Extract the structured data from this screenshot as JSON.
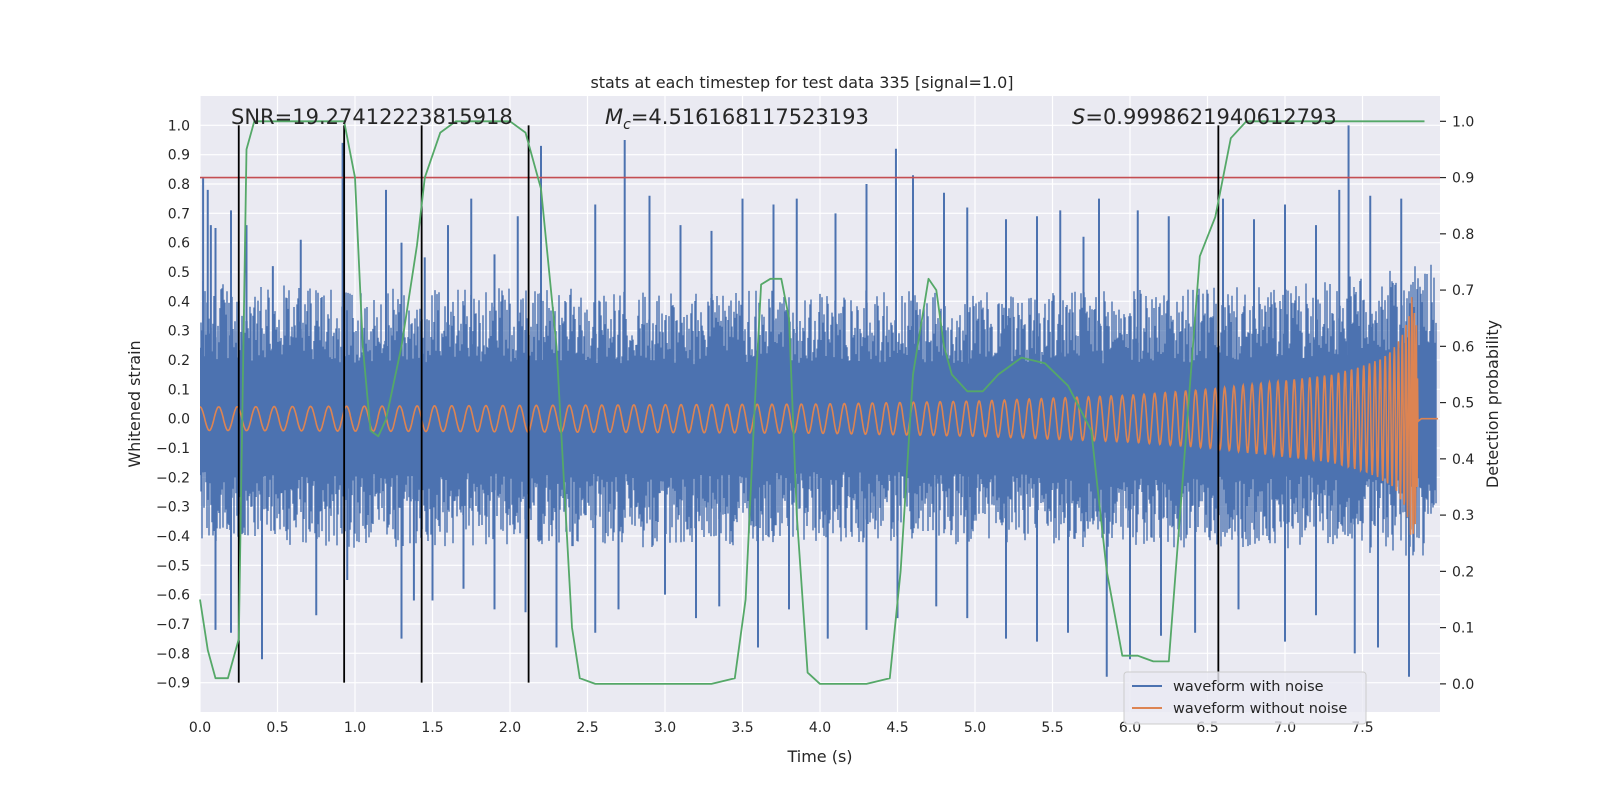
{
  "chart_data": {
    "type": "line",
    "title": "stats at each timestep for test data 335 [signal=1.0]",
    "xlabel": "Time (s)",
    "ylabel": "Whitened strain",
    "ylabel_right": "Detection probability",
    "xlim": [
      0.0,
      8.0
    ],
    "ylim": [
      -1.0,
      1.1
    ],
    "ylim_right": [
      -0.05,
      1.045
    ],
    "x_ticks": [
      "0.0",
      "0.5",
      "1.0",
      "1.5",
      "2.0",
      "2.5",
      "3.0",
      "3.5",
      "4.0",
      "4.5",
      "5.0",
      "5.5",
      "6.0",
      "6.5",
      "7.0",
      "7.5"
    ],
    "x_tick_values": [
      0.0,
      0.5,
      1.0,
      1.5,
      2.0,
      2.5,
      3.0,
      3.5,
      4.0,
      4.5,
      5.0,
      5.5,
      6.0,
      6.5,
      7.0,
      7.5
    ],
    "y_ticks": [
      "−0.9",
      "−0.8",
      "−0.7",
      "−0.6",
      "−0.5",
      "−0.4",
      "−0.3",
      "−0.2",
      "−0.1",
      "0.0",
      "0.1",
      "0.2",
      "0.3",
      "0.4",
      "0.5",
      "0.6",
      "0.7",
      "0.8",
      "0.9",
      "1.0"
    ],
    "y_tick_values": [
      -0.9,
      -0.8,
      -0.7,
      -0.6,
      -0.5,
      -0.4,
      -0.3,
      -0.2,
      -0.1,
      0.0,
      0.1,
      0.2,
      0.3,
      0.4,
      0.5,
      0.6,
      0.7,
      0.8,
      0.9,
      1.0
    ],
    "y2_ticks": [
      "0.0",
      "0.1",
      "0.2",
      "0.3",
      "0.4",
      "0.5",
      "0.6",
      "0.7",
      "0.8",
      "0.9",
      "1.0"
    ],
    "y2_tick_values": [
      0.0,
      0.1,
      0.2,
      0.3,
      0.4,
      0.5,
      0.6,
      0.7,
      0.8,
      0.9,
      1.0
    ],
    "annotations": {
      "snr": "SNR=19.27412223815918",
      "mc_symbol": "M",
      "mc_sub": "c",
      "mc_value": "=4.516168117523193",
      "s_symbol": "S",
      "s_value": "=0.9998621940612793"
    },
    "threshold": {
      "value": 0.9,
      "color": "#c44e52",
      "axis": "right"
    },
    "vertical_markers": [
      0.25,
      0.93,
      1.43,
      2.12,
      6.57
    ],
    "noise_series": {
      "name": "waveform with noise",
      "color": "#4c72b0",
      "envelope_x": [
        0.0,
        1.0,
        2.0,
        3.0,
        4.0,
        5.0,
        6.0,
        7.0,
        7.9,
        8.0
      ],
      "envelope_upper": [
        0.45,
        0.42,
        0.43,
        0.41,
        0.42,
        0.41,
        0.42,
        0.43,
        0.5,
        0.5
      ],
      "envelope_lower": [
        -0.4,
        -0.42,
        -0.41,
        -0.42,
        -0.4,
        -0.41,
        -0.42,
        -0.42,
        -0.45,
        -0.45
      ],
      "spikes": [
        [
          0.02,
          0.82
        ],
        [
          0.05,
          0.78
        ],
        [
          0.07,
          0.66
        ],
        [
          0.1,
          0.65
        ],
        [
          0.2,
          0.71
        ],
        [
          0.3,
          0.66
        ],
        [
          0.47,
          0.52
        ],
        [
          0.65,
          0.61
        ],
        [
          0.92,
          0.94
        ],
        [
          1.2,
          0.78
        ],
        [
          1.3,
          0.6
        ],
        [
          1.45,
          0.55
        ],
        [
          1.6,
          0.66
        ],
        [
          1.75,
          0.75
        ],
        [
          1.9,
          0.56
        ],
        [
          2.05,
          0.69
        ],
        [
          2.2,
          0.93
        ],
        [
          2.55,
          0.73
        ],
        [
          2.74,
          0.95
        ],
        [
          2.9,
          0.76
        ],
        [
          3.1,
          0.66
        ],
        [
          3.3,
          0.64
        ],
        [
          3.5,
          0.75
        ],
        [
          3.7,
          0.73
        ],
        [
          3.85,
          0.75
        ],
        [
          4.1,
          0.7
        ],
        [
          4.3,
          0.8
        ],
        [
          4.49,
          0.92
        ],
        [
          4.6,
          0.83
        ],
        [
          4.8,
          0.77
        ],
        [
          4.95,
          0.72
        ],
        [
          5.2,
          0.68
        ],
        [
          5.4,
          0.69
        ],
        [
          5.55,
          0.71
        ],
        [
          5.7,
          0.62
        ],
        [
          5.8,
          0.75
        ],
        [
          6.05,
          0.71
        ],
        [
          6.25,
          0.69
        ],
        [
          6.6,
          0.75
        ],
        [
          6.8,
          0.68
        ],
        [
          7.0,
          0.73
        ],
        [
          7.2,
          0.66
        ],
        [
          7.35,
          0.78
        ],
        [
          7.41,
          1.0
        ],
        [
          7.55,
          0.76
        ],
        [
          7.75,
          0.75
        ],
        [
          0.1,
          -0.72
        ],
        [
          0.2,
          -0.73
        ],
        [
          0.4,
          -0.82
        ],
        [
          0.75,
          -0.67
        ],
        [
          0.95,
          -0.55
        ],
        [
          1.3,
          -0.75
        ],
        [
          1.38,
          -0.62
        ],
        [
          1.5,
          -0.62
        ],
        [
          1.7,
          -0.58
        ],
        [
          1.9,
          -0.65
        ],
        [
          2.1,
          -0.66
        ],
        [
          2.3,
          -0.78
        ],
        [
          2.55,
          -0.73
        ],
        [
          2.7,
          -0.65
        ],
        [
          3.0,
          -0.6
        ],
        [
          3.2,
          -0.68
        ],
        [
          3.35,
          -0.64
        ],
        [
          3.6,
          -0.78
        ],
        [
          3.8,
          -0.65
        ],
        [
          4.05,
          -0.75
        ],
        [
          4.3,
          -0.72
        ],
        [
          4.5,
          -0.68
        ],
        [
          4.75,
          -0.64
        ],
        [
          4.95,
          -0.68
        ],
        [
          5.2,
          -0.75
        ],
        [
          5.4,
          -0.76
        ],
        [
          5.6,
          -0.73
        ],
        [
          5.85,
          -0.88
        ],
        [
          6.0,
          -0.82
        ],
        [
          6.2,
          -0.74
        ],
        [
          6.42,
          -0.73
        ],
        [
          6.7,
          -0.65
        ],
        [
          7.0,
          -0.76
        ],
        [
          7.2,
          -0.67
        ],
        [
          7.45,
          -0.8
        ],
        [
          7.6,
          -0.78
        ],
        [
          7.8,
          -0.88
        ]
      ]
    },
    "clean_series": {
      "name": "waveform without noise",
      "color": "#dd8452",
      "amplitude_x": [
        0.0,
        2.0,
        4.0,
        5.0,
        6.0,
        6.5,
        7.0,
        7.3,
        7.5,
        7.6,
        7.7,
        7.75,
        7.8,
        7.82,
        7.85,
        7.86,
        7.88,
        7.95,
        8.0
      ],
      "amplitude_y": [
        0.04,
        0.045,
        0.05,
        0.06,
        0.08,
        0.1,
        0.13,
        0.15,
        0.18,
        0.2,
        0.24,
        0.28,
        0.35,
        0.45,
        0.35,
        0.02,
        0.0,
        0.0,
        0.0
      ]
    },
    "probability_series": {
      "name": "detection probability",
      "color": "#55a868",
      "x": [
        0.0,
        0.05,
        0.1,
        0.18,
        0.25,
        0.3,
        0.35,
        0.45,
        0.55,
        0.65,
        0.85,
        0.93,
        1.0,
        1.05,
        1.1,
        1.15,
        1.2,
        1.3,
        1.4,
        1.45,
        1.55,
        1.65,
        1.8,
        2.0,
        2.1,
        2.2,
        2.3,
        2.4,
        2.45,
        2.55,
        2.7,
        3.0,
        3.3,
        3.45,
        3.52,
        3.58,
        3.62,
        3.68,
        3.75,
        3.8,
        3.85,
        3.92,
        4.0,
        4.1,
        4.3,
        4.45,
        4.52,
        4.6,
        4.7,
        4.75,
        4.8,
        4.85,
        4.95,
        5.05,
        5.15,
        5.3,
        5.45,
        5.6,
        5.75,
        5.85,
        5.95,
        6.05,
        6.15,
        6.25,
        6.35,
        6.45,
        6.55,
        6.65,
        6.75,
        6.85,
        7.0,
        7.5,
        7.9
      ],
      "y": [
        0.15,
        0.06,
        0.01,
        0.01,
        0.08,
        0.95,
        1.0,
        1.0,
        1.0,
        1.0,
        1.0,
        1.0,
        0.9,
        0.6,
        0.45,
        0.44,
        0.47,
        0.6,
        0.78,
        0.9,
        0.98,
        1.0,
        1.0,
        1.0,
        0.98,
        0.88,
        0.6,
        0.1,
        0.01,
        0.0,
        0.0,
        0.0,
        0.0,
        0.01,
        0.15,
        0.5,
        0.71,
        0.72,
        0.72,
        0.65,
        0.3,
        0.02,
        0.0,
        0.0,
        0.0,
        0.01,
        0.2,
        0.55,
        0.72,
        0.7,
        0.6,
        0.55,
        0.52,
        0.52,
        0.55,
        0.58,
        0.57,
        0.53,
        0.45,
        0.2,
        0.05,
        0.05,
        0.04,
        0.04,
        0.4,
        0.76,
        0.83,
        0.97,
        1.0,
        1.0,
        1.0,
        1.0,
        1.0
      ]
    },
    "legend": {
      "position": "lower-right",
      "entries": [
        "waveform with noise",
        "waveform without noise"
      ]
    }
  }
}
